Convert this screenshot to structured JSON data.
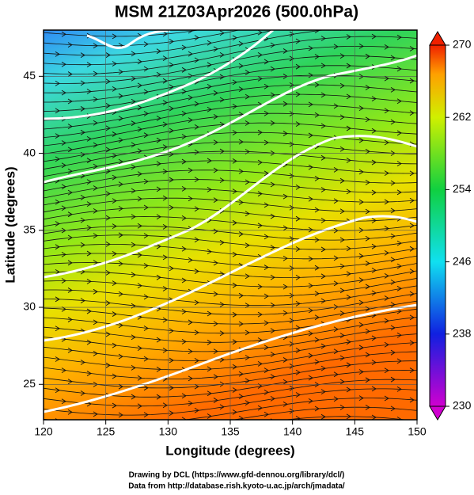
{
  "chart_data": {
    "type": "map",
    "title": "MSM 21Z03Apr2026 (500.0hPa)",
    "x_label": "Longitude (degrees)",
    "y_label": "Latitude  (degrees)",
    "xlim": [
      120,
      150
    ],
    "xticks": [
      120,
      125,
      130,
      135,
      140,
      145,
      150
    ],
    "ylim": [
      22.7,
      48
    ],
    "yticks": [
      25,
      30,
      35,
      40,
      45
    ],
    "grid": true,
    "colorbar": {
      "lim": [
        230,
        270
      ],
      "ticks": [
        230,
        238,
        246,
        254,
        262,
        270
      ]
    },
    "footer": [
      "Drawing by DCL (https://www.gfd-dennou.org/library/dcl/)",
      "Data from http://database.rish.kyoto-u.ac.jp/arch/jmadata/"
    ]
  }
}
